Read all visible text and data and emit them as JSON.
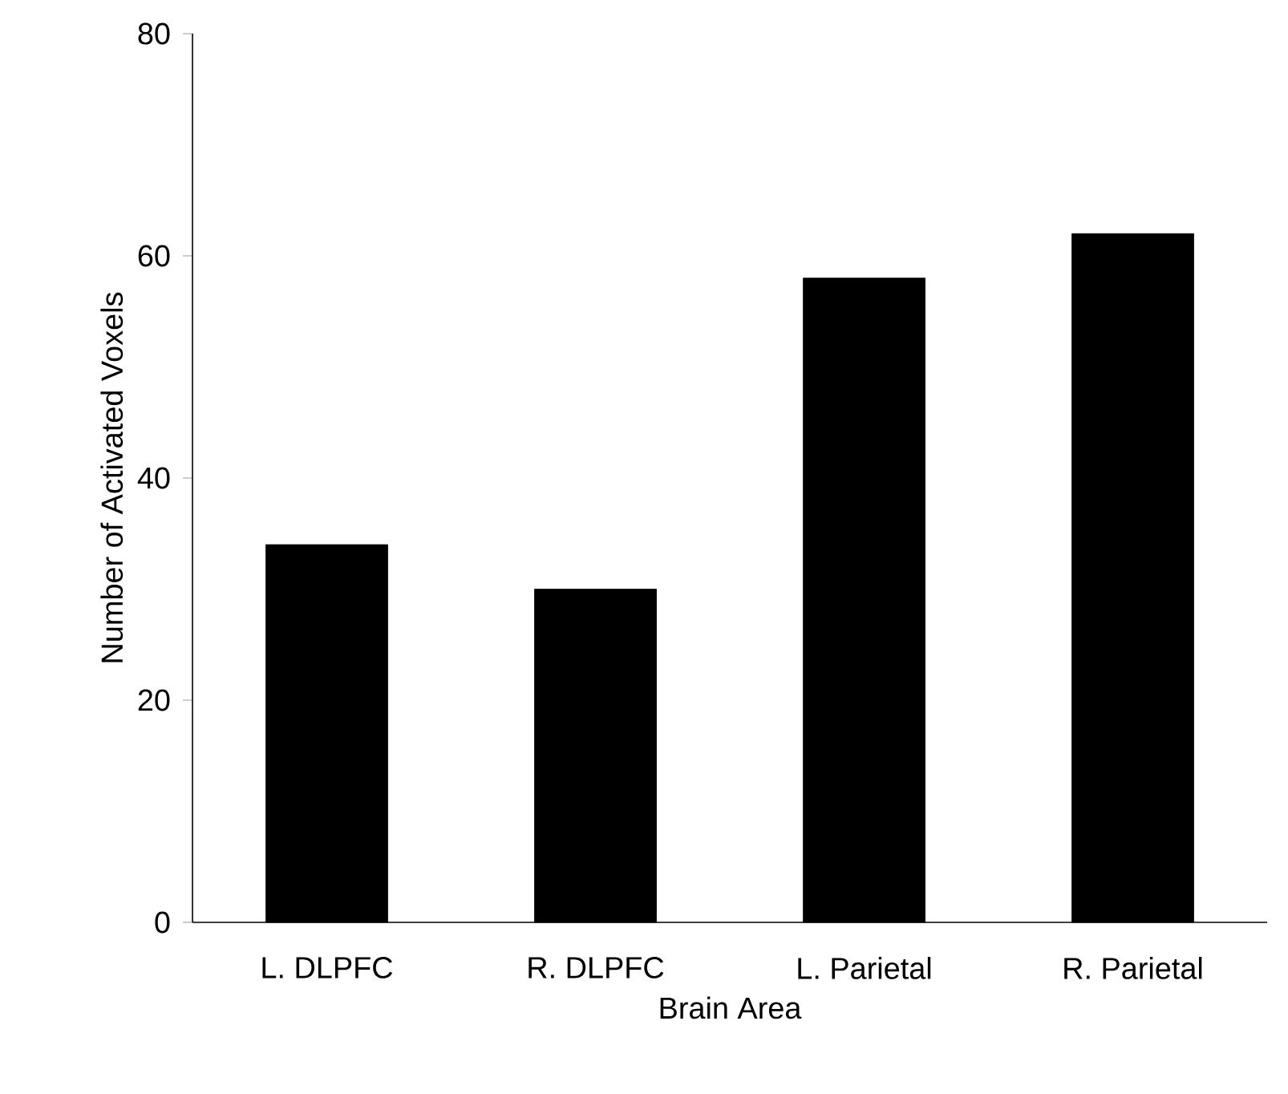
{
  "chart_data": {
    "type": "bar",
    "xlabel": "Brain Area",
    "ylabel": "Number of Activated Voxels",
    "categories": [
      "L. DLPFC",
      "R. DLPFC",
      "L. Parietal",
      "R. Parietal"
    ],
    "values": [
      34,
      30,
      58,
      62
    ],
    "color": "#000000",
    "ylim": [
      0,
      80
    ],
    "yticks": [
      0,
      20,
      40,
      60,
      80
    ],
    "grid": false
  }
}
